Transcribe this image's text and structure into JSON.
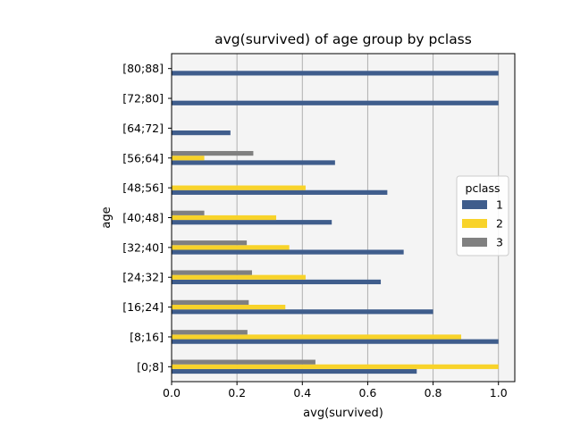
{
  "chart_data": {
    "type": "bar",
    "orientation": "horizontal",
    "title": "avg(survived) of age group by pclass",
    "xlabel": "avg(survived)",
    "ylabel": "age",
    "xlim": [
      0,
      1.05
    ],
    "xticks": [
      "0.0",
      "0.2",
      "0.4",
      "0.6",
      "0.8",
      "1.0"
    ],
    "grid": "vertical",
    "categories": [
      "[0;8]",
      "[8;16]",
      "[16;24]",
      "[24;32]",
      "[32;40]",
      "[40;48]",
      "[48;56]",
      "[56;64]",
      "[64;72]",
      "[72;80]",
      "[80;88]"
    ],
    "legend": {
      "title": "pclass",
      "placement": "center-right"
    },
    "series": [
      {
        "name": "1",
        "color": "#3f5d8c",
        "values": [
          0.75,
          1.0,
          0.8,
          0.64,
          0.71,
          0.49,
          0.66,
          0.5,
          0.18,
          1.0,
          1.0
        ]
      },
      {
        "name": "2",
        "color": "#f8d32a",
        "values": [
          1.0,
          0.886,
          0.348,
          0.41,
          0.36,
          0.32,
          0.41,
          0.1,
          null,
          null,
          null
        ]
      },
      {
        "name": "3",
        "color": "#808080",
        "values": [
          0.44,
          0.232,
          0.236,
          0.246,
          0.23,
          0.1,
          null,
          0.25,
          null,
          null,
          null
        ]
      }
    ]
  }
}
